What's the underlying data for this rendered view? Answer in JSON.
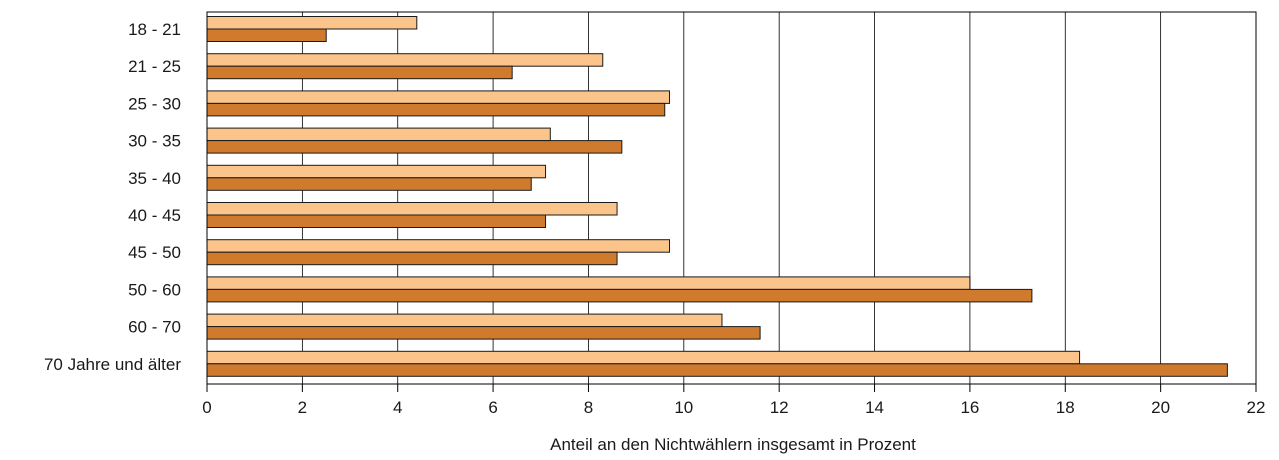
{
  "chart_data": {
    "type": "bar",
    "orientation": "horizontal",
    "categories": [
      "18 - 21",
      "21 - 25",
      "25 - 30",
      "30 - 35",
      "35 - 40",
      "40 - 45",
      "45 - 50",
      "50 - 60",
      "60 - 70",
      "70 Jahre und älter"
    ],
    "series": [
      {
        "color": "#fac48a",
        "values": [
          4.4,
          8.3,
          9.7,
          7.2,
          7.1,
          8.6,
          9.7,
          16.0,
          10.8,
          18.3
        ]
      },
      {
        "color": "#d07a2e",
        "values": [
          2.5,
          6.4,
          9.6,
          8.7,
          6.8,
          7.1,
          8.6,
          17.3,
          11.6,
          21.4
        ]
      }
    ],
    "xlabel": "Anteil an den Nichtwählern insgesamt in Prozent",
    "ylabel": "",
    "xlim": [
      0,
      22
    ],
    "xticks": [
      "0",
      "2",
      "4",
      "6",
      "8",
      "10",
      "12",
      "14",
      "16",
      "18",
      "20",
      "22"
    ],
    "grid": "vertical",
    "legend": "none"
  }
}
